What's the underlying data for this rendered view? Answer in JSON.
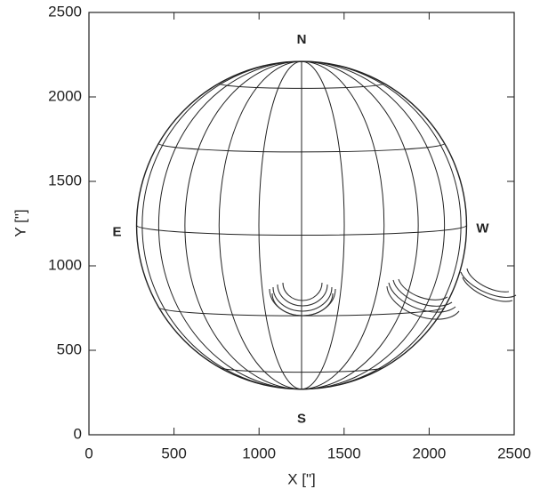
{
  "chart_data": {
    "type": "solar-disk",
    "xlabel": "X [\"]",
    "ylabel": "Y [\"]",
    "xlim": [
      0,
      2500
    ],
    "ylim": [
      0,
      2500
    ],
    "xticks": [
      0,
      500,
      1000,
      1500,
      2000,
      2500
    ],
    "yticks": [
      0,
      500,
      1000,
      1500,
      2000,
      2500
    ],
    "disk": {
      "center_x": 1250,
      "center_y": 1240,
      "radius": 970
    },
    "directions": {
      "north": "N",
      "south": "S",
      "east": "E",
      "west": "W"
    }
  }
}
